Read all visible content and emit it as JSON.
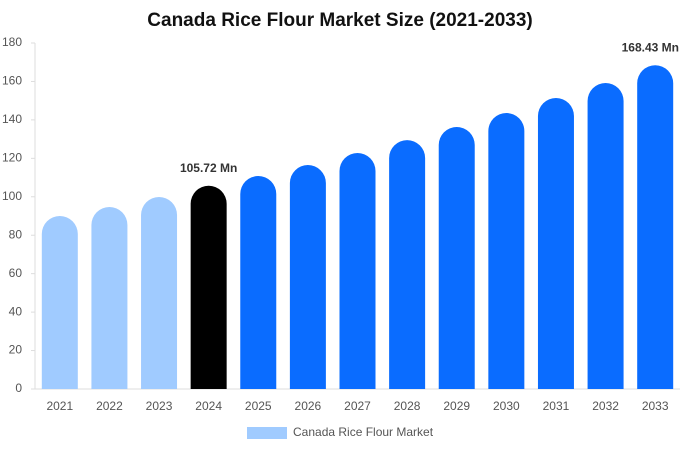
{
  "chart_data": {
    "type": "bar",
    "title": "Canada Rice Flour Market Size (2021-2033)",
    "categories": [
      "2021",
      "2022",
      "2023",
      "2024",
      "2025",
      "2026",
      "2027",
      "2028",
      "2029",
      "2030",
      "2031",
      "2032",
      "2033"
    ],
    "series": [
      {
        "name": "Canada Rice Flour Market",
        "color": "#a0cbff",
        "colors": [
          "#a0cbff",
          "#a0cbff",
          "#a0cbff",
          "#000000",
          "#0a6cff",
          "#0a6cff",
          "#0a6cff",
          "#0a6cff",
          "#0a6cff",
          "#0a6cff",
          "#0a6cff",
          "#0a6cff",
          "#0a6cff"
        ],
        "values": [
          90,
          94.7,
          99.9,
          105.72,
          110.8,
          116.5,
          122.8,
          129.5,
          136.3,
          143.6,
          151.4,
          159.2,
          168.43
        ],
        "value_labels": [
          null,
          null,
          null,
          "105.72 Mn",
          null,
          null,
          null,
          null,
          null,
          null,
          null,
          null,
          "168.43 Mn"
        ]
      }
    ],
    "ylim": [
      0,
      180
    ],
    "yticks": [
      0,
      20,
      40,
      60,
      80,
      100,
      120,
      140,
      160,
      180
    ],
    "legend": "bottom"
  }
}
